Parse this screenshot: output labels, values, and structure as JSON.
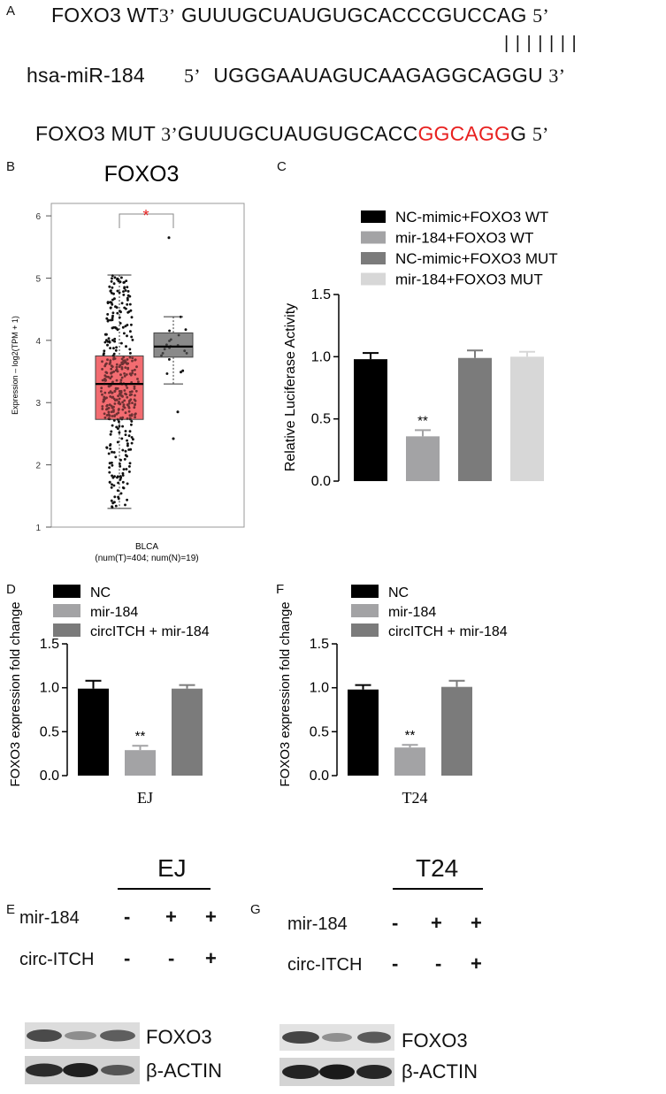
{
  "panels": {
    "A": "A",
    "B": "B",
    "C": "C",
    "D": "D",
    "E": "E",
    "F": "F",
    "G": "G"
  },
  "panel_a": {
    "wt_label": "FOXO3 WT",
    "wt_left": "3’",
    "wt_seq": "GUUUGCUAUGUGCACCCGUCCAG",
    "wt_right": "5’",
    "pairs": "| | | | | | |",
    "mir_label": "hsa-miR-184",
    "mir_left": "5’",
    "mir_seq": "UGGGAAUAGUCAAGAGGCAGGU",
    "mir_right": "3’",
    "mut_label": "FOXO3 MUT",
    "mut_left": "3’",
    "mut_seq_plain": "GUUUGCUAUGUGCACC",
    "mut_seq_red": "GGCAGG",
    "mut_seq_tail": "G",
    "mut_right": "5’"
  },
  "chart_data": [
    {
      "id": "B",
      "type": "box",
      "title": "FOXO3",
      "ylabel": "Expression – log2(TPM + 1)",
      "ylim": [
        1,
        6.2
      ],
      "yticks": [
        "1",
        "2",
        "3",
        "4",
        "5",
        "6"
      ],
      "xlabel": "BLCA",
      "xsublabel": "(num(T)=404; num(N)=19)",
      "significance": "*",
      "boxes": [
        {
          "name": "T",
          "color": "#f26065",
          "whisker_low": 1.3,
          "q1": 2.73,
          "median": 3.3,
          "q3": 3.75,
          "whisker_high": 5.05,
          "n": 404
        },
        {
          "name": "N",
          "color": "#808080",
          "whisker_low": 3.3,
          "q1": 3.73,
          "median": 3.9,
          "q3": 4.12,
          "whisker_high": 4.38,
          "n": 19,
          "outliers": [
            5.65,
            2.42,
            2.85
          ]
        }
      ]
    },
    {
      "id": "C",
      "type": "bar",
      "ylabel": "Relative Luciferase Activity",
      "ylim": [
        0,
        1.5
      ],
      "yticks": [
        "0.0",
        "0.5",
        "1.0",
        "1.5"
      ],
      "categories": [
        "NC-mimic+FOXO3 WT",
        "mir-184+FOXO3 WT",
        "NC-mimic+FOXO3  MUT",
        "mir-184+FOXO3  MUT"
      ],
      "values": [
        0.98,
        0.36,
        0.99,
        1.0
      ],
      "errors": [
        0.05,
        0.05,
        0.06,
        0.04
      ],
      "colors": [
        "#000000",
        "#a3a3a5",
        "#7b7b7b",
        "#d7d7d7"
      ],
      "annotations": [
        "",
        "**",
        "",
        ""
      ]
    },
    {
      "id": "D",
      "type": "bar",
      "ylabel": "FOXO3 expression fold change",
      "xlabel": "EJ",
      "ylim": [
        0,
        1.5
      ],
      "yticks": [
        "0.0",
        "0.5",
        "1.0",
        "1.5"
      ],
      "categories": [
        "NC",
        "mir-184",
        "circITCH + mir-184"
      ],
      "values": [
        0.99,
        0.29,
        0.99
      ],
      "errors": [
        0.09,
        0.05,
        0.04
      ],
      "colors": [
        "#000000",
        "#a3a3a5",
        "#7b7b7b"
      ],
      "annotations": [
        "",
        "**",
        ""
      ]
    },
    {
      "id": "F",
      "type": "bar",
      "ylabel": "FOXO3 expression fold change",
      "xlabel": "T24",
      "ylim": [
        0,
        1.5
      ],
      "yticks": [
        "0.0",
        "0.5",
        "1.0",
        "1.5"
      ],
      "categories": [
        "NC",
        "mir-184",
        "circITCH + mir-184"
      ],
      "values": [
        0.98,
        0.32,
        1.01
      ],
      "errors": [
        0.05,
        0.03,
        0.07
      ],
      "colors": [
        "#000000",
        "#a3a3a5",
        "#7b7b7b"
      ],
      "annotations": [
        "",
        "**",
        ""
      ]
    }
  ],
  "blot_e": {
    "title": "EJ",
    "row1_label": "mir-184",
    "row1_signs": [
      "-",
      "+",
      "+"
    ],
    "row2_label": "circ-ITCH",
    "row2_signs": [
      "-",
      "-",
      "+"
    ],
    "band1_label": "FOXO3",
    "band2_label": "β-ACTIN"
  },
  "blot_g": {
    "title": "T24",
    "row1_label": "mir-184",
    "row1_signs": [
      "-",
      "+",
      "+"
    ],
    "row2_label": "circ-ITCH",
    "row2_signs": [
      "-",
      "-",
      "+"
    ],
    "band1_label": "FOXO3",
    "band2_label": "β-ACTIN"
  }
}
